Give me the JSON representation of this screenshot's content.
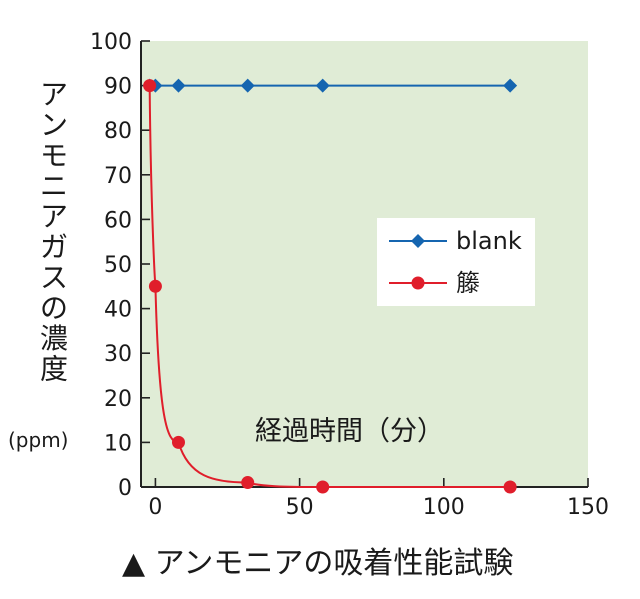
{
  "caption": "▲ アンモニアの吸着性能試験",
  "chart_data": {
    "type": "line",
    "ylabel": "アンモニアガスの濃度",
    "yunit": "(ppm)",
    "xlabel": "経過時間（分）",
    "xlim": [
      -5,
      150
    ],
    "ylim": [
      0,
      100
    ],
    "xticks": [
      0,
      50,
      100,
      150
    ],
    "yticks": [
      0,
      10,
      20,
      30,
      40,
      50,
      60,
      70,
      80,
      90,
      100
    ],
    "grid": false,
    "legend_position": "right-middle",
    "background_color": "#e0ecd6",
    "series": [
      {
        "name": "blank",
        "color": "#1565b0",
        "marker": "diamond",
        "x": [
          -2,
          0,
          8,
          32,
          58,
          123
        ],
        "y": [
          90,
          90,
          90,
          90,
          90,
          90
        ]
      },
      {
        "name": "籐",
        "color": "#e01e2b",
        "marker": "circle",
        "x": [
          -2,
          0,
          8,
          32,
          58,
          123
        ],
        "y": [
          90,
          45,
          10,
          1,
          0,
          0
        ]
      }
    ]
  }
}
